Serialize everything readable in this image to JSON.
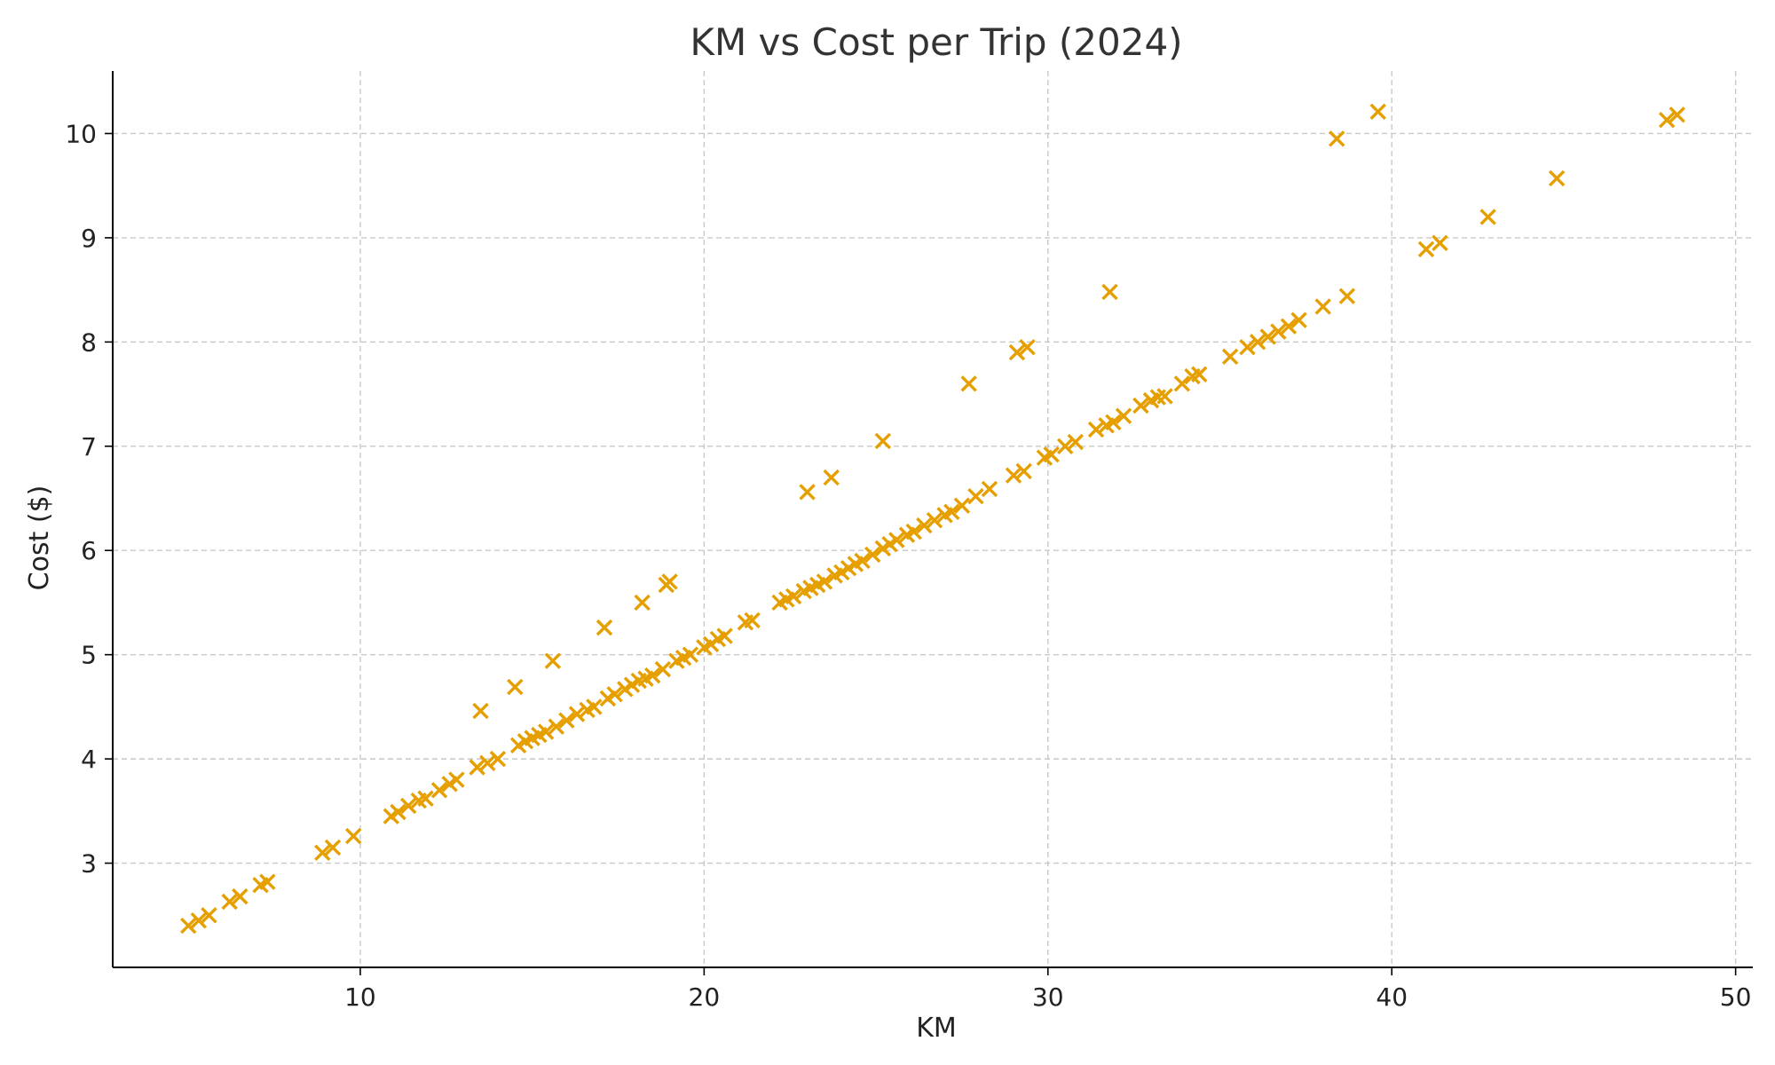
{
  "chart_data": {
    "type": "scatter",
    "title": "KM vs Cost per Trip (2024)",
    "xlabel": "KM",
    "ylabel": "Cost ($)",
    "xlim": [
      2.8,
      50.5
    ],
    "ylim": [
      2.0,
      10.6
    ],
    "xticks": [
      10,
      20,
      30,
      40,
      50
    ],
    "yticks": [
      3,
      4,
      5,
      6,
      7,
      8,
      9,
      10
    ],
    "grid": true,
    "marker": "x",
    "color": "#E69F00",
    "series": [
      {
        "points": [
          [
            5.0,
            2.4
          ],
          [
            5.3,
            2.45
          ],
          [
            5.6,
            2.5
          ],
          [
            6.2,
            2.63
          ],
          [
            6.5,
            2.68
          ],
          [
            7.1,
            2.79
          ],
          [
            7.3,
            2.82
          ],
          [
            8.9,
            3.1
          ],
          [
            9.2,
            3.15
          ],
          [
            9.8,
            3.26
          ],
          [
            10.9,
            3.45
          ],
          [
            11.1,
            3.49
          ],
          [
            11.4,
            3.55
          ],
          [
            11.7,
            3.6
          ],
          [
            11.9,
            3.62
          ],
          [
            12.3,
            3.7
          ],
          [
            12.6,
            3.76
          ],
          [
            12.8,
            3.8
          ],
          [
            13.4,
            3.92
          ],
          [
            13.7,
            3.96
          ],
          [
            14.0,
            4.0
          ],
          [
            14.6,
            4.13
          ],
          [
            14.8,
            4.17
          ],
          [
            15.0,
            4.2
          ],
          [
            15.2,
            4.23
          ],
          [
            15.4,
            4.26
          ],
          [
            15.7,
            4.31
          ],
          [
            16.0,
            4.37
          ],
          [
            16.3,
            4.43
          ],
          [
            16.6,
            4.47
          ],
          [
            16.8,
            4.5
          ],
          [
            17.2,
            4.58
          ],
          [
            17.4,
            4.62
          ],
          [
            17.7,
            4.67
          ],
          [
            17.9,
            4.71
          ],
          [
            18.1,
            4.75
          ],
          [
            18.3,
            4.77
          ],
          [
            18.5,
            4.8
          ],
          [
            18.8,
            4.86
          ],
          [
            19.2,
            4.94
          ],
          [
            19.4,
            4.97
          ],
          [
            19.6,
            5.0
          ],
          [
            20.0,
            5.07
          ],
          [
            20.2,
            5.1
          ],
          [
            20.4,
            5.15
          ],
          [
            20.6,
            5.18
          ],
          [
            21.2,
            5.31
          ],
          [
            21.4,
            5.33
          ],
          [
            22.2,
            5.5
          ],
          [
            22.4,
            5.53
          ],
          [
            22.6,
            5.56
          ],
          [
            22.9,
            5.61
          ],
          [
            23.1,
            5.64
          ],
          [
            23.3,
            5.67
          ],
          [
            23.5,
            5.7
          ],
          [
            23.8,
            5.76
          ],
          [
            24.0,
            5.79
          ],
          [
            24.2,
            5.83
          ],
          [
            24.4,
            5.87
          ],
          [
            24.6,
            5.9
          ],
          [
            24.9,
            5.96
          ],
          [
            25.2,
            6.02
          ],
          [
            25.4,
            6.06
          ],
          [
            25.6,
            6.1
          ],
          [
            25.9,
            6.15
          ],
          [
            26.1,
            6.18
          ],
          [
            26.4,
            6.24
          ],
          [
            26.7,
            6.29
          ],
          [
            27.0,
            6.34
          ],
          [
            27.2,
            6.37
          ],
          [
            27.5,
            6.43
          ],
          [
            27.9,
            6.52
          ],
          [
            28.3,
            6.59
          ],
          [
            29.0,
            6.72
          ],
          [
            29.3,
            6.76
          ],
          [
            29.9,
            6.89
          ],
          [
            30.1,
            6.92
          ],
          [
            30.5,
            7.0
          ],
          [
            30.8,
            7.04
          ],
          [
            31.4,
            7.16
          ],
          [
            31.7,
            7.2
          ],
          [
            31.9,
            7.23
          ],
          [
            32.2,
            7.29
          ],
          [
            32.7,
            7.39
          ],
          [
            33.0,
            7.44
          ],
          [
            33.2,
            7.47
          ],
          [
            33.4,
            7.48
          ],
          [
            33.9,
            7.6
          ],
          [
            34.2,
            7.67
          ],
          [
            34.4,
            7.69
          ],
          [
            35.3,
            7.86
          ],
          [
            35.8,
            7.95
          ],
          [
            36.1,
            8.0
          ],
          [
            36.4,
            8.05
          ],
          [
            36.7,
            8.1
          ],
          [
            37.0,
            8.15
          ],
          [
            37.3,
            8.21
          ],
          [
            38.0,
            8.34
          ],
          [
            38.7,
            8.44
          ],
          [
            13.5,
            4.46
          ],
          [
            14.5,
            4.69
          ],
          [
            15.6,
            4.94
          ],
          [
            17.1,
            5.26
          ],
          [
            18.2,
            5.5
          ],
          [
            18.9,
            5.67
          ],
          [
            19.0,
            5.7
          ],
          [
            23.0,
            6.56
          ],
          [
            23.7,
            6.7
          ],
          [
            25.2,
            7.05
          ],
          [
            27.7,
            7.6
          ],
          [
            29.1,
            7.9
          ],
          [
            29.4,
            7.95
          ],
          [
            31.8,
            8.48
          ],
          [
            38.4,
            9.95
          ],
          [
            39.6,
            10.21
          ],
          [
            41.0,
            8.89
          ],
          [
            41.4,
            8.95
          ],
          [
            42.8,
            9.2
          ],
          [
            44.8,
            9.57
          ],
          [
            48.0,
            10.13
          ],
          [
            48.3,
            10.18
          ]
        ]
      }
    ]
  }
}
